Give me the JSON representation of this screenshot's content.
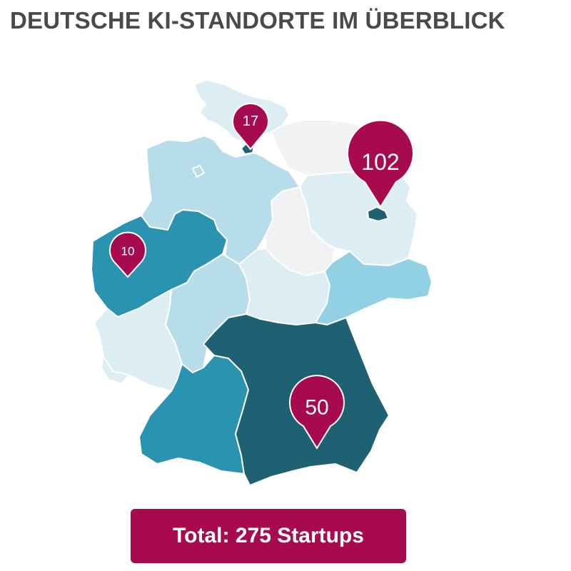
{
  "title": "DEUTSCHE KI-STANDORTE IM ÜBERBLICK",
  "pins": {
    "hamburg": "17",
    "berlin": "102",
    "nrw": "10",
    "bayern": "50"
  },
  "total_label": "Total: 275 Startups",
  "colors": {
    "pin": "#a80a50",
    "darkest": "#1d6172",
    "dark": "#2a93b0",
    "medium": "#92d1e3",
    "light": "#b6dde9",
    "lightest": "#dcedf3",
    "grey": "#f1f2f3"
  }
}
